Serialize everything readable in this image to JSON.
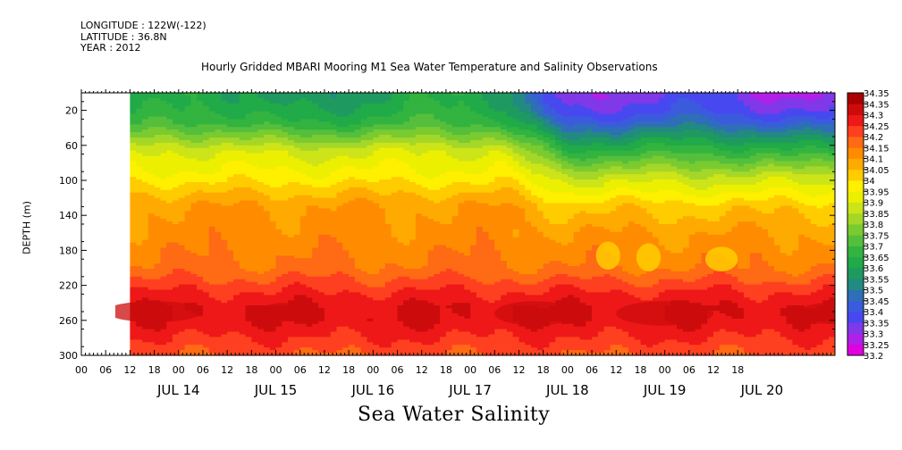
{
  "meta": {
    "longitude": "LONGITUDE : 122W(-122)",
    "latitude": "LATITUDE : 36.8N",
    "year": "YEAR : 2012"
  },
  "title": "Hourly Gridded MBARI Mooring M1 Sea Water Temperature and Salinity Observations",
  "caption": "Sea Water Salinity",
  "chart_data": {
    "type": "heatmap",
    "title": "Hourly Gridded MBARI Mooring M1 Sea Water Temperature and Salinity Observations",
    "xlabel": "",
    "ylabel": "DEPTH (m)",
    "variable": "Sea Water Salinity",
    "y_inverted": true,
    "ylim": [
      0,
      300
    ],
    "y_ticks": [
      20,
      60,
      100,
      140,
      180,
      220,
      260,
      300
    ],
    "x_hour_range": [
      -12,
      174
    ],
    "data_hour_range": [
      0,
      174
    ],
    "x_hour_tick_labels": [
      "00",
      "06",
      "12",
      "18",
      "00",
      "06",
      "12",
      "18",
      "00",
      "06",
      "12",
      "18",
      "00",
      "06",
      "12",
      "18",
      "00",
      "06",
      "12",
      "18",
      "00",
      "06",
      "12",
      "18",
      "00",
      "06",
      "12",
      "18"
    ],
    "x_day_labels": [
      "JUL 14",
      "JUL 15",
      "JUL 16",
      "JUL 17",
      "JUL 18",
      "JUL 19",
      "JUL 20"
    ],
    "colorbar_levels": [
      33.2,
      33.25,
      33.3,
      33.35,
      33.4,
      33.45,
      33.5,
      33.55,
      33.6,
      33.65,
      33.7,
      33.75,
      33.8,
      33.85,
      33.9,
      33.95,
      34,
      34.05,
      34.1,
      34.15,
      34.2,
      34.25,
      34.3,
      34.35
    ],
    "colorbar_colors": [
      "#e000e0",
      "#b020e8",
      "#8038e8",
      "#4848f0",
      "#3a5cdc",
      "#2e6fb8",
      "#228a80",
      "#1e9a60",
      "#20aa48",
      "#33b340",
      "#55bf3c",
      "#7acb30",
      "#a4d728",
      "#cce418",
      "#ecf000",
      "#fff000",
      "#ffcc00",
      "#ffaa00",
      "#ff8c00",
      "#ff6a14",
      "#ff4020",
      "#ee1818",
      "#cc0c0c",
      "#aa0000"
    ],
    "depth_profile_depths": [
      5,
      20,
      35,
      50,
      65,
      80,
      95,
      110,
      130,
      160,
      200,
      230,
      245,
      260,
      280,
      300
    ],
    "depth_profile_salinity_jul14_16": [
      33.6,
      33.63,
      33.68,
      33.78,
      33.88,
      33.93,
      33.97,
      34.03,
      34.1,
      34.12,
      34.16,
      34.26,
      34.3,
      34.3,
      34.25,
      34.2
    ],
    "depth_profile_salinity_jul18_20": [
      33.33,
      33.37,
      33.45,
      33.56,
      33.66,
      33.76,
      33.86,
      33.93,
      34.03,
      34.1,
      34.15,
      34.26,
      34.3,
      34.3,
      34.25,
      34.2
    ]
  }
}
